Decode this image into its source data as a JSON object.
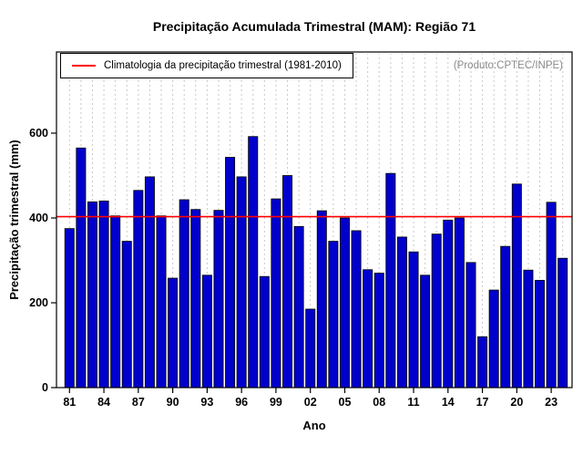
{
  "header": {
    "title": "Precipitação Acumulada Trimestral (MAM): Região 71",
    "product_label": "(Produto:CPTEC/INPE)"
  },
  "legend": {
    "label": "Climatologia da precipitação trimestral (1981-2010)"
  },
  "chart_data": {
    "type": "bar",
    "title": "Precipitação Acumulada Trimestral (MAM): Região 71",
    "xlabel": "Ano",
    "ylabel": "Precipitação trimestral (mm)",
    "years": [
      "81",
      "82",
      "83",
      "84",
      "85",
      "86",
      "87",
      "88",
      "89",
      "90",
      "91",
      "92",
      "93",
      "94",
      "95",
      "96",
      "97",
      "98",
      "99",
      "00",
      "01",
      "02",
      "03",
      "04",
      "05",
      "06",
      "07",
      "08",
      "09",
      "10",
      "11",
      "12",
      "13",
      "14",
      "15",
      "16",
      "17",
      "18",
      "19",
      "20",
      "21",
      "22",
      "23",
      "24"
    ],
    "values": [
      375,
      565,
      438,
      440,
      405,
      345,
      465,
      497,
      405,
      258,
      443,
      420,
      265,
      418,
      543,
      497,
      592,
      262,
      445,
      500,
      380,
      185,
      417,
      345,
      400,
      370,
      278,
      270,
      505,
      355,
      320,
      265,
      362,
      395,
      400,
      295,
      120,
      230,
      333,
      480,
      277,
      253,
      437,
      305
    ],
    "x_tick_every": 3,
    "y_ticks": [
      0,
      200,
      400,
      600
    ],
    "ylim": [
      0,
      790
    ],
    "climatology_value": 403,
    "legend_label": "Climatologia da precipitação trimestral (1981-2010)",
    "annotation": "(Produto:CPTEC/INPE)",
    "grid": true,
    "legend_position": "top-left",
    "colors": {
      "bar": "#0000cc",
      "bar_border": "#000000",
      "climatology_line": "#ff0000",
      "grid": "#c8c8c8",
      "axis": "#000000",
      "annotation_text": "#8a8a8a"
    }
  }
}
